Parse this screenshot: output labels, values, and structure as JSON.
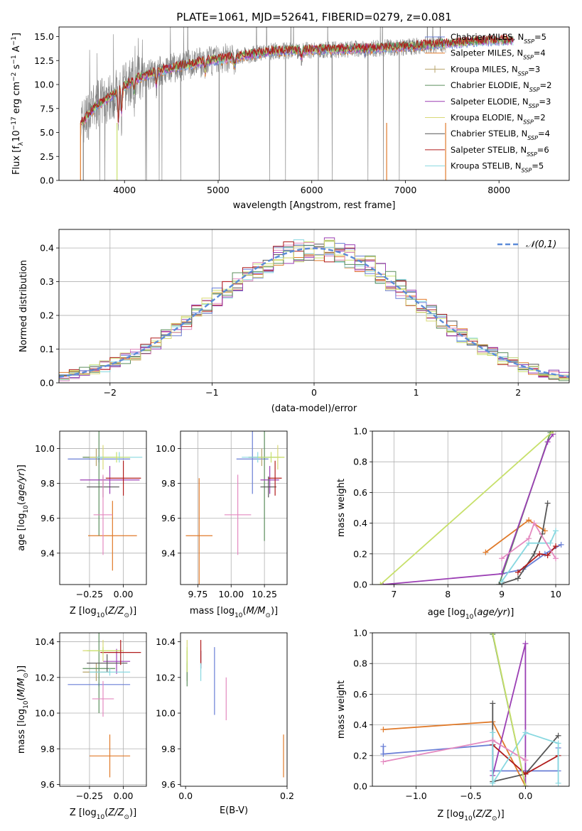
{
  "title": "PLATE=1061, MJD=52641, FIBERID=0279, z=0.081",
  "colors": [
    "#6a7fd6",
    "#e07a2a",
    "#b7a36a",
    "#5c8f5e",
    "#9b3fb4",
    "#d8d877",
    "#555555",
    "#b01c1c",
    "#88d8e0",
    "#e48ac0",
    "#c7e06a"
  ],
  "legend": [
    "Chabrier MILES, N_SSP=5",
    "Salpeter MILES, N_SSP=4",
    "Kroupa MILES, N_SSP=3",
    "Chabrier ELODIE, N_SSP=2",
    "Salpeter ELODIE, N_SSP=3",
    "Kroupa ELODIE, N_SSP=2",
    "Chabrier STELIB, N_SSP=4",
    "Salpeter STELIB, N_SSP=6",
    "Kroupa STELIB, N_SSP=5"
  ],
  "chart_data": [
    {
      "id": "spectrum",
      "type": "line",
      "xlabel": "wavelength [Angstrom, rest frame]",
      "ylabel": "Flux [f_λ10^-17 erg cm^-2 s^-1 A^-1]",
      "xlim": [
        3300,
        8750
      ],
      "ylim": [
        0,
        16
      ],
      "xticks": [
        4000,
        5000,
        6000,
        7000,
        8000
      ],
      "yticks": [
        0.0,
        2.5,
        5.0,
        7.5,
        10.0,
        12.5,
        15.0
      ],
      "continuum": [
        [
          3500,
          5.5
        ],
        [
          3700,
          7.8
        ],
        [
          3900,
          9.0
        ],
        [
          4100,
          10.5
        ],
        [
          4400,
          11.5
        ],
        [
          4800,
          12.3
        ],
        [
          5200,
          12.9
        ],
        [
          5600,
          13.5
        ],
        [
          6000,
          13.6
        ],
        [
          6500,
          13.7
        ],
        [
          7000,
          13.9
        ],
        [
          7400,
          14.2
        ],
        [
          7800,
          14.5
        ],
        [
          8100,
          14.6
        ]
      ],
      "observed_range": [
        3530,
        7430
      ],
      "model_range": [
        3530,
        8150
      ]
    },
    {
      "id": "residuals",
      "type": "bar",
      "xlabel": "(data-model)/error",
      "ylabel": "Normed distribution",
      "xlim": [
        -2.5,
        2.5
      ],
      "ylim": [
        0,
        0.455
      ],
      "xticks": [
        -2,
        -1,
        0,
        1,
        2
      ],
      "yticks": [
        0.0,
        0.1,
        0.2,
        0.3,
        0.4
      ],
      "bin_width": 0.1,
      "gaussian_label": "N(0,1)",
      "legend_loc": "top-right"
    },
    {
      "id": "age_vs_Z",
      "type": "scatter",
      "xlabel": "Z [log10(Z/Z_sun)]",
      "ylabel": "age [log10(age/yr)]",
      "xlim": [
        -0.47,
        0.17
      ],
      "ylim": [
        9.22,
        10.1
      ],
      "xticks": [
        -0.25,
        0.0
      ],
      "yticks": [
        9.4,
        9.6,
        9.8,
        10.0
      ],
      "points": [
        {
          "x": -0.18,
          "y": 9.94,
          "ex": 0.23,
          "ey": 0.02
        },
        {
          "x": -0.08,
          "y": 9.5,
          "ex": 0.18,
          "ey": 0.2
        },
        {
          "x": -0.2,
          "y": 9.95,
          "ex": 0.1,
          "ey": 0.05
        },
        {
          "x": -0.18,
          "y": 9.95,
          "ex": 0.12,
          "ey": 0.45
        },
        {
          "x": -0.1,
          "y": 9.82,
          "ex": 0.22,
          "ey": 0.08
        },
        {
          "x": -0.15,
          "y": 9.95,
          "ex": 0.1,
          "ey": 0.07
        },
        {
          "x": -0.15,
          "y": 9.78,
          "ex": 0.12,
          "ey": 0.06
        },
        {
          "x": 0.0,
          "y": 9.83,
          "ex": 0.13,
          "ey": 0.1
        },
        {
          "x": -0.03,
          "y": 9.95,
          "ex": 0.17,
          "ey": 0.03
        },
        {
          "x": -0.15,
          "y": 9.62,
          "ex": 0.07,
          "ey": 0.23
        },
        {
          "x": -0.05,
          "y": 9.95,
          "ex": 0.1,
          "ey": 0.03
        }
      ]
    },
    {
      "id": "age_vs_mass",
      "type": "scatter",
      "xlabel": "mass [log10(M/M_sun)]",
      "ylabel": "",
      "xlim": [
        9.62,
        10.42
      ],
      "ylim": [
        9.22,
        10.1
      ],
      "xticks": [
        9.75,
        10.0,
        10.25
      ],
      "yticks": [
        9.4,
        9.6,
        9.8,
        10.0
      ],
      "points": [
        {
          "x": 10.16,
          "y": 9.94,
          "ex": 0.12,
          "ey": 0.2
        },
        {
          "x": 9.76,
          "y": 9.5,
          "ex": 0.1,
          "ey": 0.33
        },
        {
          "x": 10.23,
          "y": 9.95,
          "ex": 0.1,
          "ey": 0.05
        },
        {
          "x": 10.25,
          "y": 9.95,
          "ex": 0.12,
          "ey": 0.48
        },
        {
          "x": 10.29,
          "y": 9.82,
          "ex": 0.07,
          "ey": 0.08
        },
        {
          "x": 10.35,
          "y": 9.95,
          "ex": 0.05,
          "ey": 0.07
        },
        {
          "x": 10.28,
          "y": 9.78,
          "ex": 0.06,
          "ey": 0.06
        },
        {
          "x": 10.33,
          "y": 9.83,
          "ex": 0.05,
          "ey": 0.1
        },
        {
          "x": 10.2,
          "y": 9.95,
          "ex": 0.12,
          "ey": 0.03
        },
        {
          "x": 10.05,
          "y": 9.62,
          "ex": 0.1,
          "ey": 0.23
        },
        {
          "x": 10.3,
          "y": 9.95,
          "ex": 0.1,
          "ey": 0.03
        }
      ]
    },
    {
      "id": "weight_vs_age",
      "type": "line",
      "xlabel": "age [log10(age/yr)]",
      "ylabel": "mass weight",
      "xlim": [
        6.6,
        10.25
      ],
      "ylim": [
        0,
        1
      ],
      "xticks": [
        7,
        8,
        9,
        10
      ],
      "yticks": [
        0.0,
        0.2,
        0.4,
        0.6,
        0.8,
        1.0
      ],
      "series": [
        {
          "color_idx": 0,
          "points": [
            [
              9.0,
              0.07
            ],
            [
              9.4,
              0.1
            ],
            [
              9.8,
              0.2
            ],
            [
              10.1,
              0.26
            ]
          ]
        },
        {
          "color_idx": 1,
          "points": [
            [
              8.7,
              0.21
            ],
            [
              9.5,
              0.42
            ],
            [
              9.8,
              0.35
            ]
          ]
        },
        {
          "color_idx": 3,
          "points": [
            [
              8.95,
              0.0
            ],
            [
              9.9,
              0.99
            ]
          ]
        },
        {
          "color_idx": 4,
          "points": [
            [
              6.8,
              0.0
            ],
            [
              9.0,
              0.07
            ],
            [
              9.85,
              0.93
            ],
            [
              9.95,
              0.98
            ]
          ]
        },
        {
          "color_idx": 6,
          "points": [
            [
              8.95,
              0.0
            ],
            [
              9.3,
              0.04
            ],
            [
              9.6,
              0.2
            ],
            [
              9.75,
              0.33
            ],
            [
              9.85,
              0.53
            ]
          ]
        },
        {
          "color_idx": 7,
          "points": [
            [
              9.3,
              0.08
            ],
            [
              9.7,
              0.2
            ],
            [
              9.85,
              0.19
            ],
            [
              10.0,
              0.25
            ]
          ]
        },
        {
          "color_idx": 8,
          "points": [
            [
              9.0,
              0.02
            ],
            [
              9.5,
              0.27
            ],
            [
              9.9,
              0.27
            ],
            [
              10.0,
              0.35
            ]
          ]
        },
        {
          "color_idx": 9,
          "points": [
            [
              9.0,
              0.17
            ],
            [
              9.5,
              0.3
            ],
            [
              9.6,
              0.4
            ],
            [
              10.0,
              0.17
            ]
          ]
        },
        {
          "color_idx": 10,
          "points": [
            [
              6.75,
              0.0
            ],
            [
              9.95,
              1.0
            ]
          ]
        }
      ]
    },
    {
      "id": "mass_vs_Z",
      "type": "scatter",
      "xlabel": "Z [log10(Z/Z_sun)]",
      "ylabel": "mass [log10(M/M_sun)]",
      "xlim": [
        -0.47,
        0.17
      ],
      "ylim": [
        9.59,
        10.45
      ],
      "xticks": [
        -0.25,
        0.0
      ],
      "yticks": [
        9.6,
        9.8,
        10.0,
        10.2,
        10.4
      ],
      "points": [
        {
          "x": -0.18,
          "y": 10.16,
          "ex": 0.23,
          "ey": 0.01
        },
        {
          "x": -0.1,
          "y": 9.76,
          "ex": 0.15,
          "ey": 0.12
        },
        {
          "x": -0.2,
          "y": 10.23,
          "ex": 0.1,
          "ey": 0.05
        },
        {
          "x": -0.18,
          "y": 10.25,
          "ex": 0.12,
          "ey": 0.25
        },
        {
          "x": -0.05,
          "y": 10.29,
          "ex": 0.1,
          "ey": 0.07
        },
        {
          "x": -0.15,
          "y": 10.35,
          "ex": 0.15,
          "ey": 0.06
        },
        {
          "x": -0.12,
          "y": 10.28,
          "ex": 0.15,
          "ey": 0.05
        },
        {
          "x": -0.02,
          "y": 10.34,
          "ex": 0.15,
          "ey": 0.07
        },
        {
          "x": -0.1,
          "y": 10.23,
          "ex": 0.15,
          "ey": 0.02
        },
        {
          "x": -0.15,
          "y": 10.08,
          "ex": 0.08,
          "ey": 0.1
        },
        {
          "x": -0.15,
          "y": 10.35,
          "ex": 0.12,
          "ey": 0.02
        }
      ]
    },
    {
      "id": "mass_vs_EBV",
      "type": "scatter",
      "xlabel": "E(B-V)",
      "ylabel": "",
      "xlim": [
        -0.01,
        0.2
      ],
      "ylim": [
        9.59,
        10.45
      ],
      "xticks": [
        0.0,
        0.2
      ],
      "yticks": [
        9.6,
        9.8,
        10.0,
        10.2,
        10.4
      ],
      "points": [
        {
          "x": 0.057,
          "y": 10.18,
          "ey": 0.19
        },
        {
          "x": 0.193,
          "y": 9.76,
          "ey": 0.12
        },
        {
          "x": 0.003,
          "y": 10.23,
          "ey": 0.05
        },
        {
          "x": 0.003,
          "y": 10.25,
          "ey": 0.1
        },
        {
          "x": 0.03,
          "y": 10.3,
          "ey": 0.05
        },
        {
          "x": 0.003,
          "y": 10.35,
          "ey": 0.06
        },
        {
          "x": 0.03,
          "y": 10.3,
          "ey": 0.05
        },
        {
          "x": 0.03,
          "y": 10.34,
          "ey": 0.07
        },
        {
          "x": 0.03,
          "y": 10.23,
          "ey": 0.05
        },
        {
          "x": 0.08,
          "y": 10.08,
          "ey": 0.12
        },
        {
          "x": 0.003,
          "y": 10.3,
          "ey": 0.07
        }
      ]
    },
    {
      "id": "weight_vs_Z",
      "type": "line",
      "xlabel": "Z [log10(Z/Z_sun)]",
      "ylabel": "mass weight",
      "xlim": [
        -1.4,
        0.4
      ],
      "ylim": [
        0,
        1
      ],
      "xticks": [
        -1.0,
        -0.5,
        0.0
      ],
      "yticks": [
        0.0,
        0.2,
        0.4,
        0.6,
        0.8,
        1.0
      ],
      "series": [
        {
          "color_idx": 0,
          "points": [
            [
              -1.3,
              0.26
            ],
            [
              -1.3,
              0.21
            ],
            [
              -0.3,
              0.27
            ],
            [
              -0.3,
              0.1
            ],
            [
              0.3,
              0.1
            ],
            [
              0.3,
              0.25
            ]
          ]
        },
        {
          "color_idx": 1,
          "points": [
            [
              -1.3,
              0.37
            ],
            [
              -0.3,
              0.42
            ],
            [
              0.0,
              0.0
            ]
          ]
        },
        {
          "color_idx": 3,
          "points": [
            [
              -0.3,
              0.99
            ],
            [
              0.0,
              0.0
            ]
          ]
        },
        {
          "color_idx": 4,
          "points": [
            [
              -0.3,
              0.07
            ],
            [
              0.0,
              0.93
            ],
            [
              0.0,
              0.0
            ]
          ]
        },
        {
          "color_idx": 6,
          "points": [
            [
              -0.3,
              0.54
            ],
            [
              -0.3,
              0.03
            ],
            [
              0.0,
              0.08
            ],
            [
              0.3,
              0.33
            ]
          ]
        },
        {
          "color_idx": 7,
          "points": [
            [
              -0.3,
              0.27
            ],
            [
              0.0,
              0.08
            ],
            [
              0.3,
              0.2
            ]
          ]
        },
        {
          "color_idx": 8,
          "points": [
            [
              -0.3,
              0.35
            ],
            [
              -0.3,
              0.02
            ],
            [
              0.0,
              0.35
            ],
            [
              0.3,
              0.28
            ],
            [
              0.3,
              0.02
            ]
          ]
        },
        {
          "color_idx": 9,
          "points": [
            [
              -1.3,
              0.16
            ],
            [
              -0.3,
              0.3
            ],
            [
              0.0,
              0.17
            ]
          ]
        },
        {
          "color_idx": 10,
          "points": [
            [
              -0.3,
              1.0
            ],
            [
              0.0,
              0.0
            ]
          ]
        }
      ]
    }
  ]
}
